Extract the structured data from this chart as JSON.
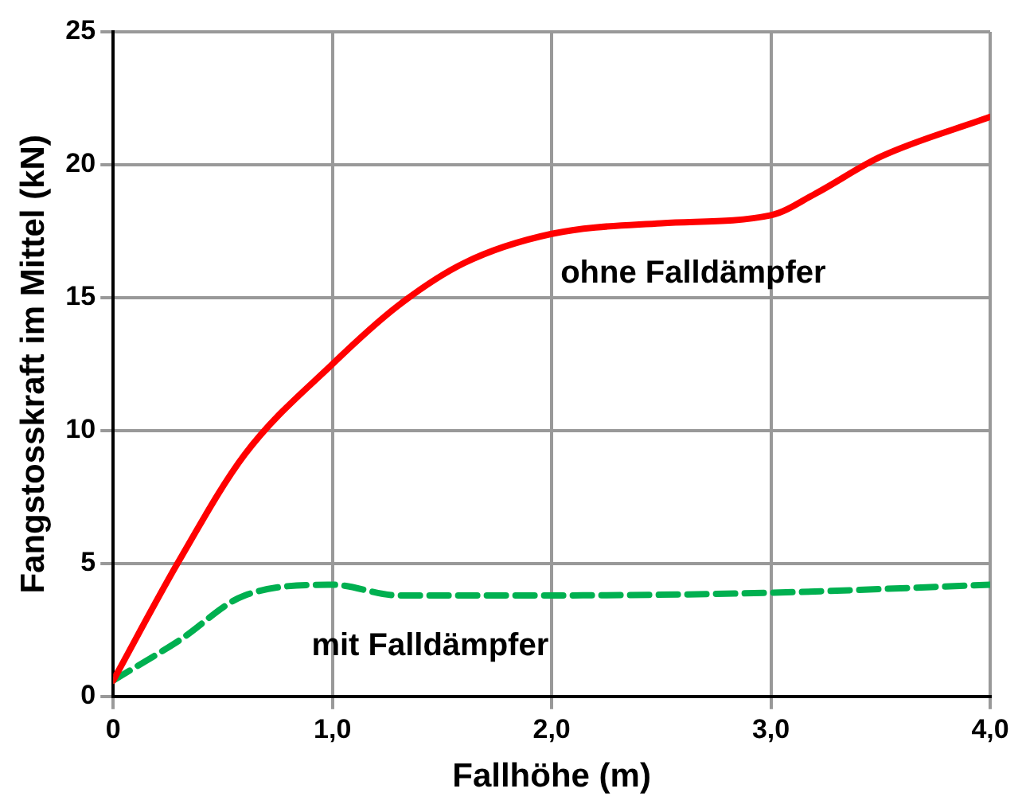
{
  "chart_data": {
    "type": "line",
    "xlabel": "Fallhöhe (m)",
    "ylabel": "Fangstosskraft im Mittel (kN)",
    "xlim": [
      0,
      4
    ],
    "xticks": [
      0,
      {
        "value": 1,
        "label": "1,0"
      },
      {
        "value": 2,
        "label": "2,0"
      },
      {
        "value": 3,
        "label": "3,0"
      },
      {
        "value": 4,
        "label": "4,0"
      }
    ],
    "ylim": [
      0,
      25
    ],
    "yticks": [
      0,
      5,
      10,
      15,
      20,
      25
    ],
    "grid": true,
    "legend": false,
    "marker": "none",
    "series": [
      {
        "name": "ohne Falldämpfer",
        "color": "#ff0000",
        "line_style": "solid",
        "x": [
          0,
          0.3,
          0.6,
          1.0,
          1.3,
          1.6,
          2.0,
          2.5,
          3.0,
          3.2,
          3.5,
          4.0
        ],
        "values": [
          0.6,
          5.1,
          9.1,
          12.5,
          14.7,
          16.3,
          17.4,
          17.8,
          18.1,
          18.9,
          20.3,
          21.8
        ]
      },
      {
        "name": "mit Falldämpfer",
        "color": "#00b050",
        "line_style": "dashed",
        "x": [
          0,
          0.3,
          0.6,
          1.0,
          1.3,
          2.0,
          3.0,
          4.0
        ],
        "values": [
          0.6,
          2.1,
          3.8,
          4.2,
          3.8,
          3.8,
          3.9,
          4.2
        ]
      }
    ]
  }
}
